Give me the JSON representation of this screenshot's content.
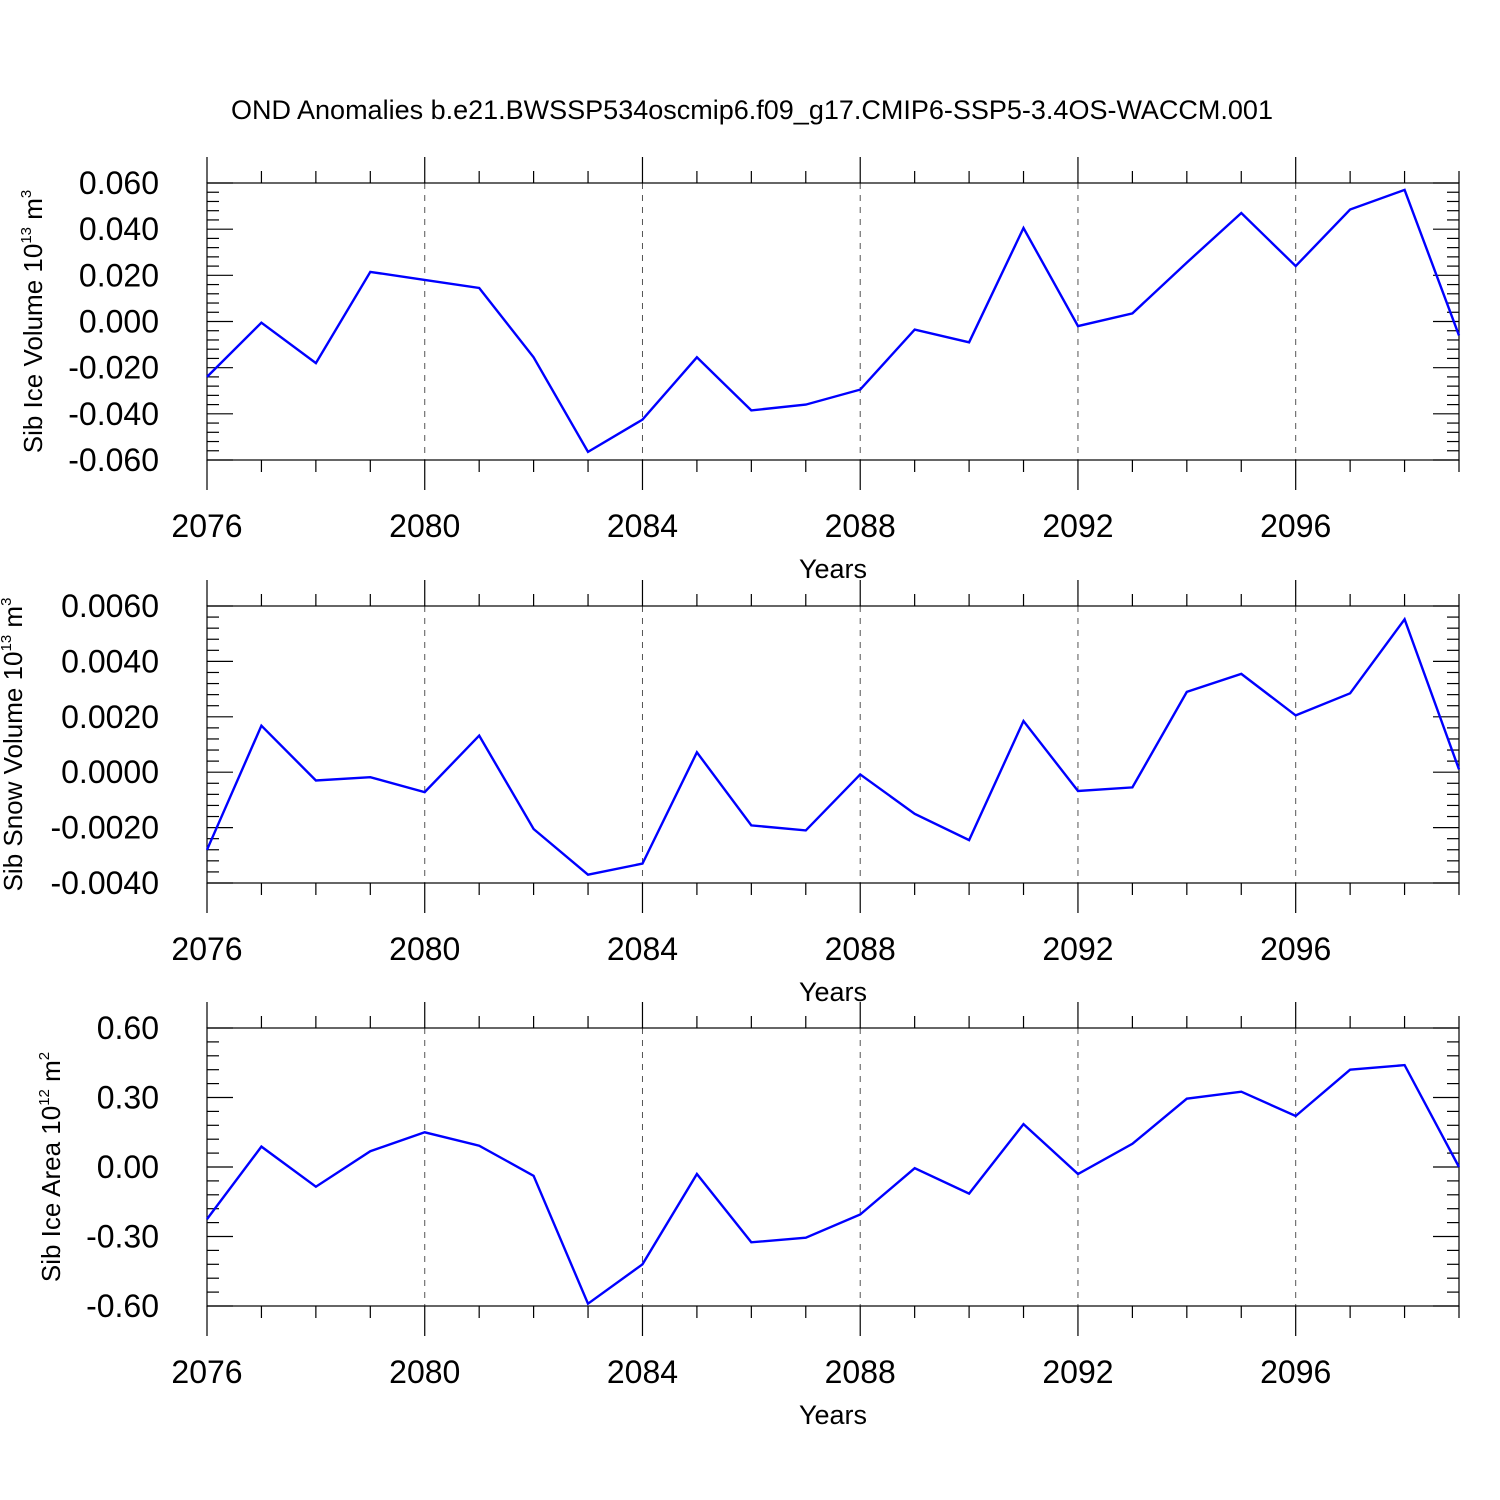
{
  "title": "OND Anomalies b.e21.BWSSP534oscmip6.f09_g17.CMIP6-SSP5-3.4OS-WACCM.001",
  "colors": {
    "line": "#0000ff",
    "axes": "#000000",
    "grid": "#555555"
  },
  "chart_data": [
    {
      "type": "line",
      "ylabel": {
        "text": "Sib Ice Volume 10",
        "exp": "13",
        "unit": " m",
        "unit_exp": "3"
      },
      "xlabel": "Years",
      "xlim": [
        2076,
        2099
      ],
      "ylim": [
        -0.06,
        0.06
      ],
      "xticks": [
        2076,
        2080,
        2084,
        2088,
        2092,
        2096
      ],
      "xtick_labels": [
        "2076",
        "2080",
        "2084",
        "2088",
        "2092",
        "2096"
      ],
      "yticks": [
        -0.06,
        -0.04,
        -0.02,
        0.0,
        0.02,
        0.04,
        0.06
      ],
      "ytick_labels": [
        "-0.060",
        "-0.040",
        "-0.020",
        "0.000",
        "0.020",
        "0.040",
        "0.060"
      ],
      "grid": "vertical dashed at labeled years",
      "x": [
        2076,
        2077,
        2078,
        2079,
        2080,
        2081,
        2082,
        2083,
        2084,
        2085,
        2086,
        2087,
        2088,
        2089,
        2090,
        2091,
        2092,
        2093,
        2094,
        2095,
        2096,
        2097,
        2098,
        2099
      ],
      "y": [
        -0.024,
        -0.0005,
        -0.018,
        0.0215,
        0.018,
        0.0145,
        -0.0155,
        -0.0565,
        -0.0425,
        -0.0155,
        -0.0385,
        -0.036,
        -0.0295,
        -0.0035,
        -0.009,
        0.0405,
        -0.002,
        0.0035,
        0.0255,
        0.047,
        0.024,
        0.0485,
        0.057,
        -0.006
      ]
    },
    {
      "type": "line",
      "ylabel": {
        "text": "Sib Snow Volume 10",
        "exp": "13",
        "unit": " m",
        "unit_exp": "3"
      },
      "xlabel": "Years",
      "xlim": [
        2076,
        2099
      ],
      "ylim": [
        -0.004,
        0.006
      ],
      "xticks": [
        2076,
        2080,
        2084,
        2088,
        2092,
        2096
      ],
      "xtick_labels": [
        "2076",
        "2080",
        "2084",
        "2088",
        "2092",
        "2096"
      ],
      "yticks": [
        -0.004,
        -0.002,
        0.0,
        0.002,
        0.004,
        0.006
      ],
      "ytick_labels": [
        "-0.0040",
        "-0.0020",
        "0.0000",
        "0.0020",
        "0.0040",
        "0.0060"
      ],
      "grid": "vertical dashed at labeled years",
      "x": [
        2076,
        2077,
        2078,
        2079,
        2080,
        2081,
        2082,
        2083,
        2084,
        2085,
        2086,
        2087,
        2088,
        2089,
        2090,
        2091,
        2092,
        2093,
        2094,
        2095,
        2096,
        2097,
        2098,
        2099
      ],
      "y": [
        -0.0028,
        0.00168,
        -0.0003,
        -0.00018,
        -0.00072,
        0.00132,
        -0.00205,
        -0.0037,
        -0.0033,
        0.00072,
        -0.00192,
        -0.0021,
        -8e-05,
        -0.0015,
        -0.00245,
        0.00185,
        -0.00068,
        -0.00055,
        0.0029,
        0.00355,
        0.00205,
        0.00285,
        0.00552,
        0.0001
      ]
    },
    {
      "type": "line",
      "ylabel": {
        "text": "Sib Ice Area 10",
        "exp": "12",
        "unit": " m",
        "unit_exp": "2"
      },
      "xlabel": "Years",
      "xlim": [
        2076,
        2099
      ],
      "ylim": [
        -0.6,
        0.6
      ],
      "xticks": [
        2076,
        2080,
        2084,
        2088,
        2092,
        2096
      ],
      "xtick_labels": [
        "2076",
        "2080",
        "2084",
        "2088",
        "2092",
        "2096"
      ],
      "yticks": [
        -0.6,
        -0.3,
        0.0,
        0.3,
        0.6
      ],
      "ytick_labels": [
        "-0.60",
        "-0.30",
        "0.00",
        "0.30",
        "0.60"
      ],
      "grid": "vertical dashed at labeled years",
      "x": [
        2076,
        2077,
        2078,
        2079,
        2080,
        2081,
        2082,
        2083,
        2084,
        2085,
        2086,
        2087,
        2088,
        2089,
        2090,
        2091,
        2092,
        2093,
        2094,
        2095,
        2096,
        2097,
        2098,
        2099
      ],
      "y": [
        -0.225,
        0.088,
        -0.085,
        0.068,
        0.15,
        0.092,
        -0.038,
        -0.59,
        -0.42,
        -0.03,
        -0.325,
        -0.305,
        -0.205,
        -0.005,
        -0.115,
        0.185,
        -0.03,
        0.1,
        0.295,
        0.325,
        0.22,
        0.42,
        0.44,
        0.0
      ]
    }
  ]
}
